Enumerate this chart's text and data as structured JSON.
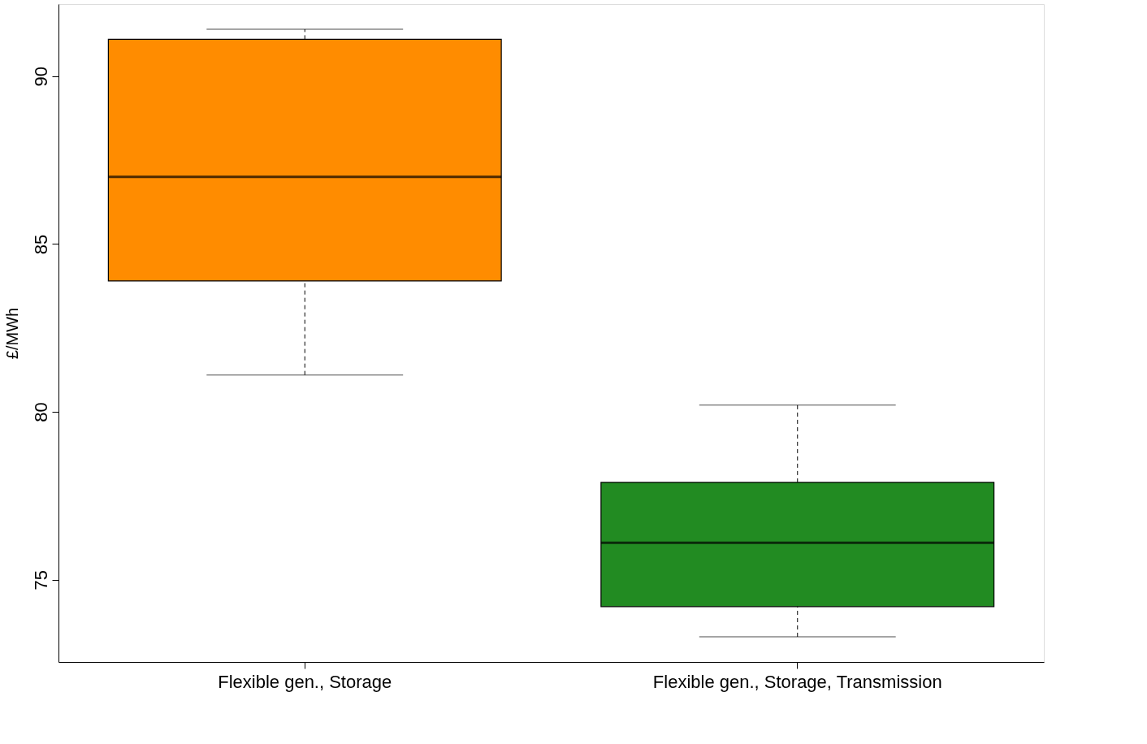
{
  "chart_data": {
    "type": "box",
    "ylabel": "£/MWh",
    "categories": [
      "Flexible gen., Storage",
      "Flexible gen., Storage, Transmission"
    ],
    "boxes": [
      {
        "low": 81.1,
        "q1": 83.9,
        "median": 87.0,
        "q3": 91.1,
        "high": 91.4
      },
      {
        "low": 73.3,
        "q1": 74.2,
        "median": 76.1,
        "q3": 77.9,
        "high": 80.2
      }
    ],
    "colors": [
      "#ff8c00",
      "#228b22"
    ],
    "ylim": [
      72.55,
      92.15
    ],
    "yticks": [
      75,
      80,
      85,
      90
    ],
    "grid": false,
    "legend": false
  }
}
